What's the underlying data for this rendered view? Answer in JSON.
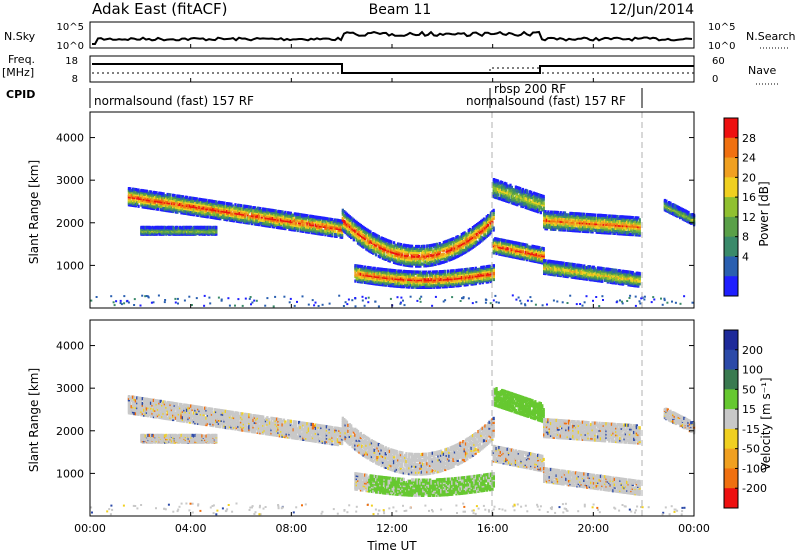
{
  "header": {
    "station": "Adak East (fitACF)",
    "beam": "Beam 11",
    "date": "12/Jun/2014"
  },
  "panels": {
    "nsky": {
      "left_label": "N.Sky",
      "left_ticks": [
        "10^5",
        "10^0"
      ],
      "right_ticks": [
        "10^5",
        "10^0"
      ],
      "right_label": "N.Search"
    },
    "freq": {
      "left_label_1": "Freq.",
      "left_label_2": "[MHz]",
      "left_ticks": [
        "18",
        "8"
      ],
      "right_ticks": [
        "60",
        "0"
      ],
      "right_label": "Nave"
    },
    "cpid": {
      "label": "CPID",
      "modes": [
        "normalsound (fast) 157 RF",
        "rbsp 200 RF",
        "normalsound (fast) 157 RF"
      ]
    }
  },
  "chart_data": [
    {
      "type": "heatmap",
      "name": "Power",
      "ylabel": "Slant Range [km]",
      "yticks": [
        "1000",
        "2000",
        "3000",
        "4000"
      ],
      "ylim": [
        0,
        4600
      ],
      "colorbar_label": "Power [dB]",
      "colorbar_ticks": [
        "4",
        "8",
        "12",
        "16",
        "20",
        "24",
        "28"
      ],
      "colorbar_colors": [
        "#1f1fff",
        "#2a5fb0",
        "#3a8a6a",
        "#5aa048",
        "#90c030",
        "#f0d020",
        "#f0a020",
        "#f07010",
        "#ee1010"
      ]
    },
    {
      "type": "heatmap",
      "name": "Velocity",
      "ylabel": "Slant Range [km]",
      "yticks": [
        "1000",
        "2000",
        "3000",
        "4000"
      ],
      "ylim": [
        0,
        4600
      ],
      "colorbar_label": "Velocity [m s⁻¹]",
      "colorbar_ticks": [
        "200",
        "100",
        "50",
        "15",
        "-15",
        "-50",
        "-100",
        "-200"
      ],
      "colorbar_colors": [
        "#1e2a9a",
        "#2c4aa8",
        "#3a7a50",
        "#66c830",
        "#c8c8c8",
        "#f0d020",
        "#f0a020",
        "#f07010",
        "#ee1010"
      ]
    }
  ],
  "xaxis": {
    "ticks": [
      "00:00",
      "04:00",
      "08:00",
      "12:00",
      "16:00",
      "20:00",
      "00:00"
    ],
    "label": "Time UT"
  },
  "colors": {
    "frame": "#000000",
    "grid_dash": "#b0b0b0"
  }
}
